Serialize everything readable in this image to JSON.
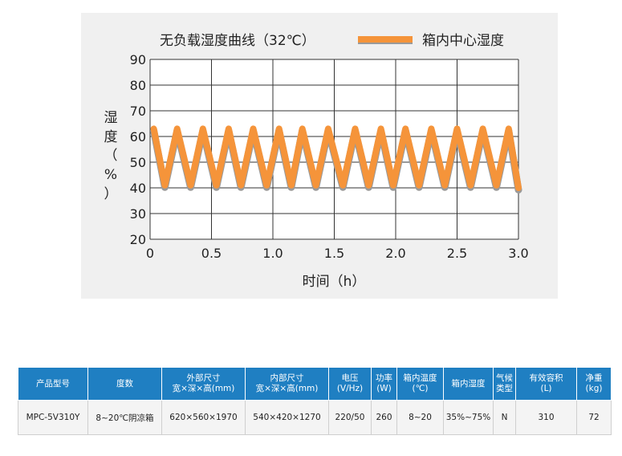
{
  "chart_data": {
    "type": "line",
    "title": "无负载湿度曲线（32℃）",
    "legend_label": "箱内中心湿度",
    "legend_placement": "top-right",
    "xlabel": "时间（h）",
    "ylabel_chars": [
      "湿",
      "度",
      "（",
      "%",
      "）"
    ],
    "xlim": [
      0,
      3.0
    ],
    "ylim": [
      20,
      90
    ],
    "x_ticks": [
      "0",
      "0.5",
      "1.0",
      "1.5",
      "2.0",
      "2.5",
      "3.0"
    ],
    "x_tick_values": [
      0,
      0.5,
      1.0,
      1.5,
      2.0,
      2.5,
      3.0
    ],
    "y_ticks": [
      "20",
      "30",
      "40",
      "50",
      "60",
      "70",
      "80",
      "90"
    ],
    "y_tick_values": [
      20,
      30,
      40,
      50,
      60,
      70,
      80,
      90
    ],
    "grid": true,
    "colors": {
      "line": "#f5943a",
      "shadow": "#9a9a9a",
      "grid": "#333333"
    },
    "series": [
      {
        "name": "箱内中心湿度",
        "x": [
          0.03,
          0.12,
          0.22,
          0.33,
          0.43,
          0.54,
          0.64,
          0.74,
          0.84,
          0.95,
          1.05,
          1.15,
          1.24,
          1.35,
          1.45,
          1.57,
          1.67,
          1.78,
          1.88,
          1.98,
          2.08,
          2.19,
          2.29,
          2.4,
          2.5,
          2.61,
          2.71,
          2.82,
          2.92,
          3.0
        ],
        "y": [
          63,
          41,
          63,
          41,
          63,
          41,
          63,
          41,
          63,
          41,
          63,
          41,
          63,
          41,
          63,
          41,
          63,
          41,
          63,
          41,
          63,
          41,
          63,
          41,
          63,
          41,
          63,
          41,
          63,
          40
        ]
      }
    ]
  },
  "table": {
    "headers": [
      [
        "产品型号"
      ],
      [
        "度数"
      ],
      [
        "外部尺寸",
        "宽×深×高(mm)"
      ],
      [
        "内部尺寸",
        "宽×深×高(mm)"
      ],
      [
        "电压",
        "(V/Hz)"
      ],
      [
        "功率",
        "(W)"
      ],
      [
        "箱内温度",
        "(℃)"
      ],
      [
        "箱内湿度"
      ],
      [
        "气候",
        "类型"
      ],
      [
        "有效容积",
        "(L)"
      ],
      [
        "净重",
        "(kg)"
      ]
    ],
    "rows": [
      [
        "MPC-5V310Y",
        "8~20℃阴凉箱",
        "620×560×1970",
        "540×420×1270",
        "220/50",
        "260",
        "8~20",
        "35%~75%",
        "N",
        "310",
        "72"
      ]
    ]
  }
}
